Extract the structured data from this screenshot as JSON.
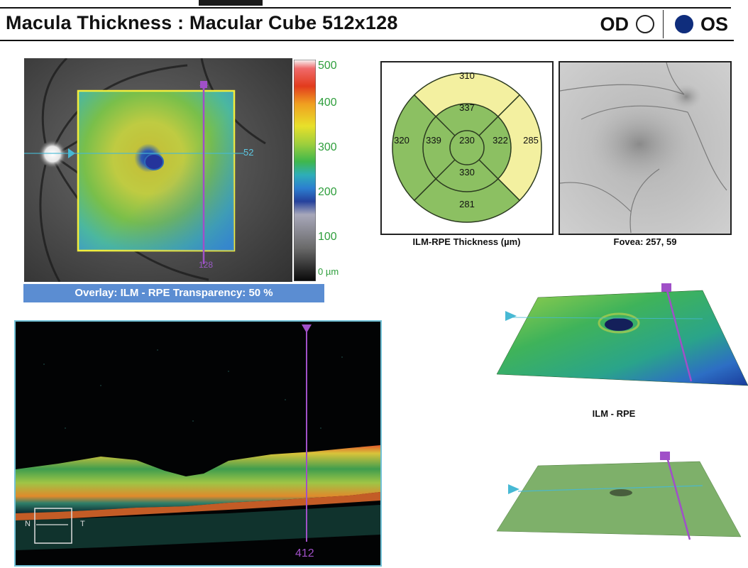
{
  "header": {
    "title": "Macula Thickness : Macular Cube 512x128",
    "od_label": "OD",
    "os_label": "OS",
    "selected_eye": "OS"
  },
  "colors": {
    "os_fill": "#0f2d7c",
    "overlay_bar": "#5b8dd2",
    "sector_green": "#8cc062",
    "sector_yellow": "#f3f0a0",
    "scan_line": "#a050c8",
    "ref_line": "#47b9d4",
    "tick_green": "#2e9e3c"
  },
  "fundus": {
    "slice_marker": "52",
    "bottom_marker": "128",
    "overlay_caption": "Overlay: ILM - RPE  Transparency: 50 %"
  },
  "colorbar": {
    "ticks": [
      "500",
      "400",
      "300",
      "200",
      "100",
      "0 µm"
    ]
  },
  "etdrs": {
    "outer_superior": "310",
    "outer_nasal": "320",
    "outer_temporal": "285",
    "outer_inferior": "281",
    "inner_superior": "337",
    "inner_nasal": "339",
    "inner_temporal": "322",
    "inner_inferior": "330",
    "center": "230",
    "caption": "ILM-RPE Thickness (µm)"
  },
  "fovea": {
    "caption": "Fovea: 257, 59"
  },
  "bscan": {
    "position": "412",
    "orient_left": "N",
    "orient_right": "T"
  },
  "surface": {
    "label": "ILM - RPE"
  }
}
